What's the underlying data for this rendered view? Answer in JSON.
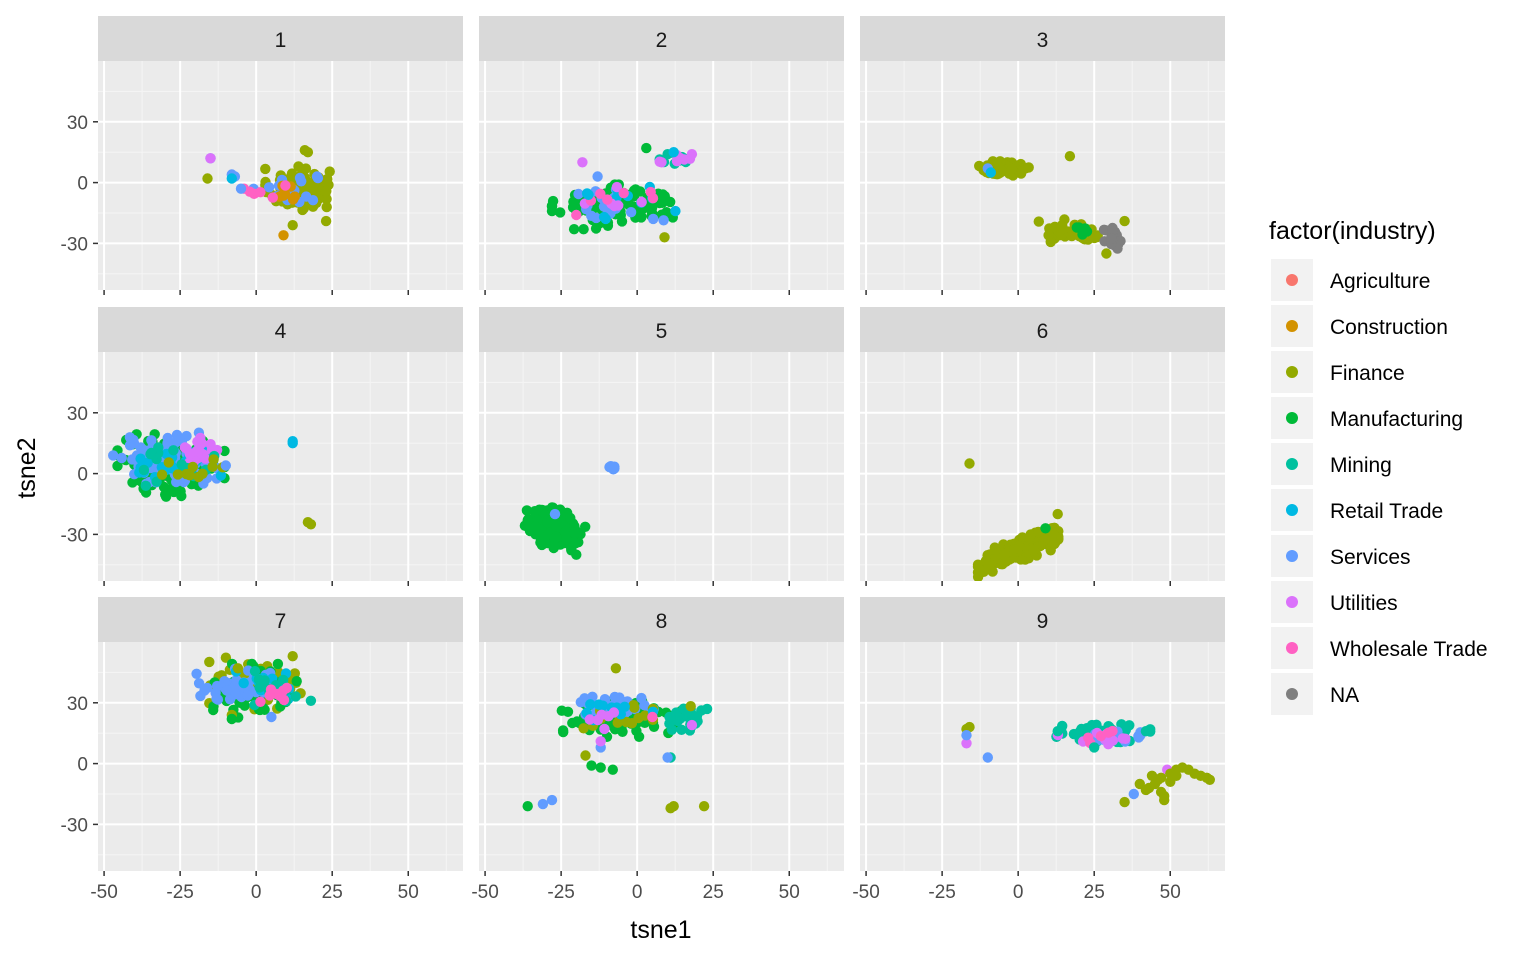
{
  "chart_data": {
    "type": "scatter",
    "facet_by": "cluster",
    "panels": [
      "1",
      "2",
      "3",
      "4",
      "5",
      "6",
      "7",
      "8",
      "9"
    ],
    "xlabel": "tsne1",
    "ylabel": "tsne2",
    "xlim": [
      -52,
      68
    ],
    "ylim": [
      -53,
      60
    ],
    "xticks": [
      -50,
      -25,
      0,
      25,
      50
    ],
    "yticks": [
      -30,
      0,
      30
    ],
    "grid": true,
    "legend": {
      "title": "factor(industry)",
      "placement": "right",
      "entries": [
        {
          "name": "Agriculture",
          "color": "#F8766D"
        },
        {
          "name": "Construction",
          "color": "#D39200"
        },
        {
          "name": "Finance",
          "color": "#93AA00"
        },
        {
          "name": "Manufacturing",
          "color": "#00BA38"
        },
        {
          "name": "Mining",
          "color": "#00C19F"
        },
        {
          "name": "Retail Trade",
          "color": "#00B9E3"
        },
        {
          "name": "Services",
          "color": "#619CFF"
        },
        {
          "name": "Utilities",
          "color": "#DB72FB"
        },
        {
          "name": "Wholesale Trade",
          "color": "#FF61C3"
        },
        {
          "name": "NA",
          "color": "#7F7F7F"
        }
      ]
    },
    "clusters": {
      "1": [
        {
          "industry": "Finance",
          "cx": 14,
          "cy": -3,
          "sx": 5,
          "sy": 5,
          "n": 110
        },
        {
          "industry": "Services",
          "cx": 10,
          "cy": -4,
          "sx": 5,
          "sy": 4,
          "n": 20
        },
        {
          "industry": "Construction",
          "cx": 10,
          "cy": -4,
          "sx": 3,
          "sy": 3,
          "n": 8
        },
        {
          "industry": "Wholesale Trade",
          "cx": 3,
          "cy": -3,
          "sx": 3,
          "sy": 2,
          "n": 5
        }
      ],
      "2": [
        {
          "industry": "Manufacturing",
          "cx": -6,
          "cy": -12,
          "sx": 10,
          "sy": 5,
          "n": 110
        },
        {
          "industry": "Services",
          "cx": -8,
          "cy": -10,
          "sx": 8,
          "sy": 5,
          "n": 20
        },
        {
          "industry": "Retail Trade",
          "cx": -5,
          "cy": -10,
          "sx": 8,
          "sy": 4,
          "n": 10
        },
        {
          "industry": "Utilities",
          "cx": -4,
          "cy": -9,
          "sx": 6,
          "sy": 4,
          "n": 6
        },
        {
          "industry": "Wholesale Trade",
          "cx": -8,
          "cy": -9,
          "sx": 6,
          "sy": 4,
          "n": 6
        },
        {
          "industry": "Mining",
          "cx": 14,
          "cy": 12,
          "sx": 3,
          "sy": 2,
          "n": 12
        },
        {
          "industry": "Utilities",
          "cx": 14,
          "cy": 12,
          "sx": 3,
          "sy": 2,
          "n": 6
        }
      ],
      "3": [
        {
          "industry": "Finance",
          "cx": -4,
          "cy": 7,
          "sx": 4,
          "sy": 1.6,
          "n": 70
        },
        {
          "industry": "Finance",
          "cx": 20,
          "cy": -24,
          "sx": 6,
          "sy": 3,
          "n": 40
        },
        {
          "industry": "NA",
          "cx": 31,
          "cy": -29,
          "sx": 1.5,
          "sy": 3,
          "n": 25
        },
        {
          "industry": "Manufacturing",
          "cx": 22,
          "cy": -22,
          "sx": 3,
          "sy": 2,
          "n": 5
        }
      ],
      "4": [
        {
          "industry": "Manufacturing",
          "cx": -28,
          "cy": 4,
          "sx": 8,
          "sy": 7,
          "n": 130
        },
        {
          "industry": "Services",
          "cx": -30,
          "cy": 7,
          "sx": 8,
          "sy": 6,
          "n": 70
        },
        {
          "industry": "Retail Trade",
          "cx": -27,
          "cy": 5,
          "sx": 7,
          "sy": 5,
          "n": 30
        },
        {
          "industry": "Utilities",
          "cx": -18,
          "cy": 11,
          "sx": 3,
          "sy": 3,
          "n": 20
        },
        {
          "industry": "Mining",
          "cx": -27,
          "cy": 5,
          "sx": 6,
          "sy": 5,
          "n": 15
        },
        {
          "industry": "Finance",
          "cx": -22,
          "cy": 2,
          "sx": 5,
          "sy": 4,
          "n": 10
        }
      ],
      "5": [
        {
          "industry": "Manufacturing",
          "cx": -27,
          "cy": -27,
          "sx": 4.5,
          "sy": 4.5,
          "n": 180
        },
        {
          "industry": "Services",
          "cx": -8,
          "cy": 3,
          "sx": 0.8,
          "sy": 0.6,
          "n": 6
        }
      ],
      "6": [
        {
          "industry": "Finance",
          "cx": 0,
          "cy": -38,
          "sx": 6,
          "sy": 4,
          "n": 200
        }
      ],
      "7": [
        {
          "industry": "Finance",
          "cx": 0,
          "cy": 40,
          "sx": 7,
          "sy": 6,
          "n": 60
        },
        {
          "industry": "Manufacturing",
          "cx": 0,
          "cy": 36,
          "sx": 7,
          "sy": 6,
          "n": 50
        },
        {
          "industry": "Services",
          "cx": -6,
          "cy": 38,
          "sx": 7,
          "sy": 4,
          "n": 45
        },
        {
          "industry": "Retail Trade",
          "cx": 2,
          "cy": 39,
          "sx": 6,
          "sy": 4,
          "n": 15
        },
        {
          "industry": "Mining",
          "cx": 8,
          "cy": 37,
          "sx": 5,
          "sy": 4,
          "n": 15
        },
        {
          "industry": "Wholesale Trade",
          "cx": 7,
          "cy": 34,
          "sx": 4,
          "sy": 3,
          "n": 8
        }
      ],
      "8": [
        {
          "industry": "Manufacturing",
          "cx": -5,
          "cy": 22,
          "sx": 10,
          "sy": 4,
          "n": 90
        },
        {
          "industry": "Services",
          "cx": -10,
          "cy": 28,
          "sx": 7,
          "sy": 3,
          "n": 35
        },
        {
          "industry": "Mining",
          "cx": 17,
          "cy": 23,
          "sx": 4,
          "sy": 3,
          "n": 25
        },
        {
          "industry": "Finance",
          "cx": 0,
          "cy": 24,
          "sx": 8,
          "sy": 3,
          "n": 15
        },
        {
          "industry": "Retail Trade",
          "cx": -8,
          "cy": 28,
          "sx": 6,
          "sy": 3,
          "n": 10
        },
        {
          "industry": "Utilities",
          "cx": -9,
          "cy": 22,
          "sx": 5,
          "sy": 3,
          "n": 6
        }
      ],
      "9": [
        {
          "industry": "Mining",
          "cx": 28,
          "cy": 15,
          "sx": 7,
          "sy": 2,
          "n": 45
        },
        {
          "industry": "Services",
          "cx": 28,
          "cy": 13,
          "sx": 7,
          "sy": 2,
          "n": 15
        },
        {
          "industry": "Utilities",
          "cx": 28,
          "cy": 13,
          "sx": 7,
          "sy": 2,
          "n": 12
        },
        {
          "industry": "Wholesale Trade",
          "cx": 28,
          "cy": 13,
          "sx": 6,
          "sy": 2,
          "n": 5
        }
      ]
    },
    "points": {
      "1": [
        [
          "Services",
          -15,
          12
        ],
        [
          "Utilities",
          -15,
          12
        ],
        [
          "Finance",
          -16,
          2
        ],
        [
          "Services",
          -7,
          3
        ],
        [
          "Services",
          -8,
          4
        ],
        [
          "Retail Trade",
          -8,
          2
        ],
        [
          "Construction",
          9,
          -26
        ],
        [
          "Finance",
          16,
          16
        ],
        [
          "Finance",
          17,
          15
        ],
        [
          "Finance",
          23,
          -19
        ],
        [
          "Finance",
          12,
          -21
        ],
        [
          "Services",
          20,
          3
        ],
        [
          "Wholesale Trade",
          -4,
          -3
        ],
        [
          "Services",
          -5,
          -3
        ]
      ],
      "2": [
        [
          "Utilities",
          -18,
          10
        ],
        [
          "Manufacturing",
          3,
          17
        ],
        [
          "Finance",
          9,
          -27
        ],
        [
          "Wholesale Trade",
          -20,
          -16
        ],
        [
          "Services",
          -13,
          3
        ],
        [
          "Retail Trade",
          -16,
          -6
        ],
        [
          "Mining",
          10,
          14
        ],
        [
          "Retail Trade",
          12,
          15
        ],
        [
          "Utilities",
          18,
          14
        ],
        [
          "Utilities",
          8,
          10
        ]
      ],
      "3": [
        [
          "Services",
          -10,
          7
        ],
        [
          "Retail Trade",
          -9,
          5
        ],
        [
          "Finance",
          17,
          13
        ],
        [
          "Finance",
          35,
          -19
        ],
        [
          "Finance",
          10,
          -26
        ],
        [
          "Finance",
          29,
          -35
        ]
      ],
      "4": [
        [
          "Retail Trade",
          12,
          16
        ],
        [
          "Retail Trade",
          12,
          15
        ],
        [
          "Finance",
          18,
          -25
        ],
        [
          "Finance",
          17,
          -24
        ],
        [
          "Finance",
          -14,
          7
        ],
        [
          "Services",
          -47,
          9
        ],
        [
          "Services",
          -10,
          4
        ]
      ],
      "5": [
        [
          "Services",
          -27,
          -20
        ],
        [
          "Manufacturing",
          -20,
          -40
        ],
        [
          "Manufacturing",
          -36,
          -23
        ]
      ],
      "6": [
        [
          "Finance",
          -16,
          5
        ],
        [
          "Finance",
          13,
          -20
        ],
        [
          "Manufacturing",
          9,
          -27
        ],
        [
          "Finance",
          -12,
          -48
        ],
        [
          "Finance",
          -10,
          -47
        ]
      ],
      "7": [
        [
          "Finance",
          12,
          53
        ],
        [
          "Finance",
          -6,
          47
        ],
        [
          "Finance",
          -8,
          24
        ],
        [
          "Manufacturing",
          -8,
          22
        ],
        [
          "Services",
          -17,
          36
        ],
        [
          "Mining",
          18,
          31
        ],
        [
          "Services",
          5,
          23
        ]
      ],
      "8": [
        [
          "Finance",
          -7,
          47
        ],
        [
          "Finance",
          -17,
          4
        ],
        [
          "Manufacturing",
          -15,
          -1
        ],
        [
          "Manufacturing",
          -12,
          -2
        ],
        [
          "Manufacturing",
          -8,
          -3
        ],
        [
          "Services",
          -12,
          8
        ],
        [
          "Utilities",
          -12,
          11
        ],
        [
          "Manufacturing",
          -36,
          -21
        ],
        [
          "Services",
          -31,
          -20
        ],
        [
          "Services",
          -28,
          -18
        ],
        [
          "Finance",
          11,
          -22
        ],
        [
          "Finance",
          12,
          -21
        ],
        [
          "Finance",
          22,
          -21
        ],
        [
          "Mining",
          11,
          3
        ],
        [
          "Services",
          10,
          3
        ],
        [
          "Wholesale Trade",
          5,
          23
        ],
        [
          "Utilities",
          18,
          19
        ]
      ],
      "9": [
        [
          "Finance",
          -16,
          18
        ],
        [
          "Finance",
          -17,
          17
        ],
        [
          "Utilities",
          -17,
          10
        ],
        [
          "Services",
          -17,
          14
        ],
        [
          "Services",
          -10,
          3
        ],
        [
          "Mining",
          13,
          16
        ],
        [
          "Mining",
          42,
          16
        ],
        [
          "Mining",
          25,
          8
        ],
        [
          "Services",
          38,
          -15
        ],
        [
          "Finance",
          35,
          -19
        ],
        [
          "Utilities",
          49,
          -3
        ],
        [
          "Finance",
          40,
          -10
        ],
        [
          "Finance",
          43,
          -12
        ],
        [
          "Finance",
          45,
          -10
        ],
        [
          "Finance",
          47,
          -14
        ],
        [
          "Finance",
          48,
          -16
        ],
        [
          "Finance",
          48,
          -18
        ],
        [
          "Finance",
          50,
          -5
        ],
        [
          "Finance",
          52,
          -3
        ],
        [
          "Finance",
          54,
          -2
        ],
        [
          "Finance",
          56,
          -3
        ],
        [
          "Finance",
          58,
          -5
        ],
        [
          "Finance",
          60,
          -6
        ],
        [
          "Finance",
          62,
          -7
        ],
        [
          "Finance",
          63,
          -8
        ],
        [
          "Finance",
          44,
          -6
        ],
        [
          "Finance",
          46,
          -8
        ],
        [
          "Finance",
          42,
          -13
        ],
        [
          "Finance",
          47,
          -7
        ],
        [
          "Finance",
          50,
          -9
        ],
        [
          "Finance",
          52,
          -6
        ]
      ]
    }
  }
}
